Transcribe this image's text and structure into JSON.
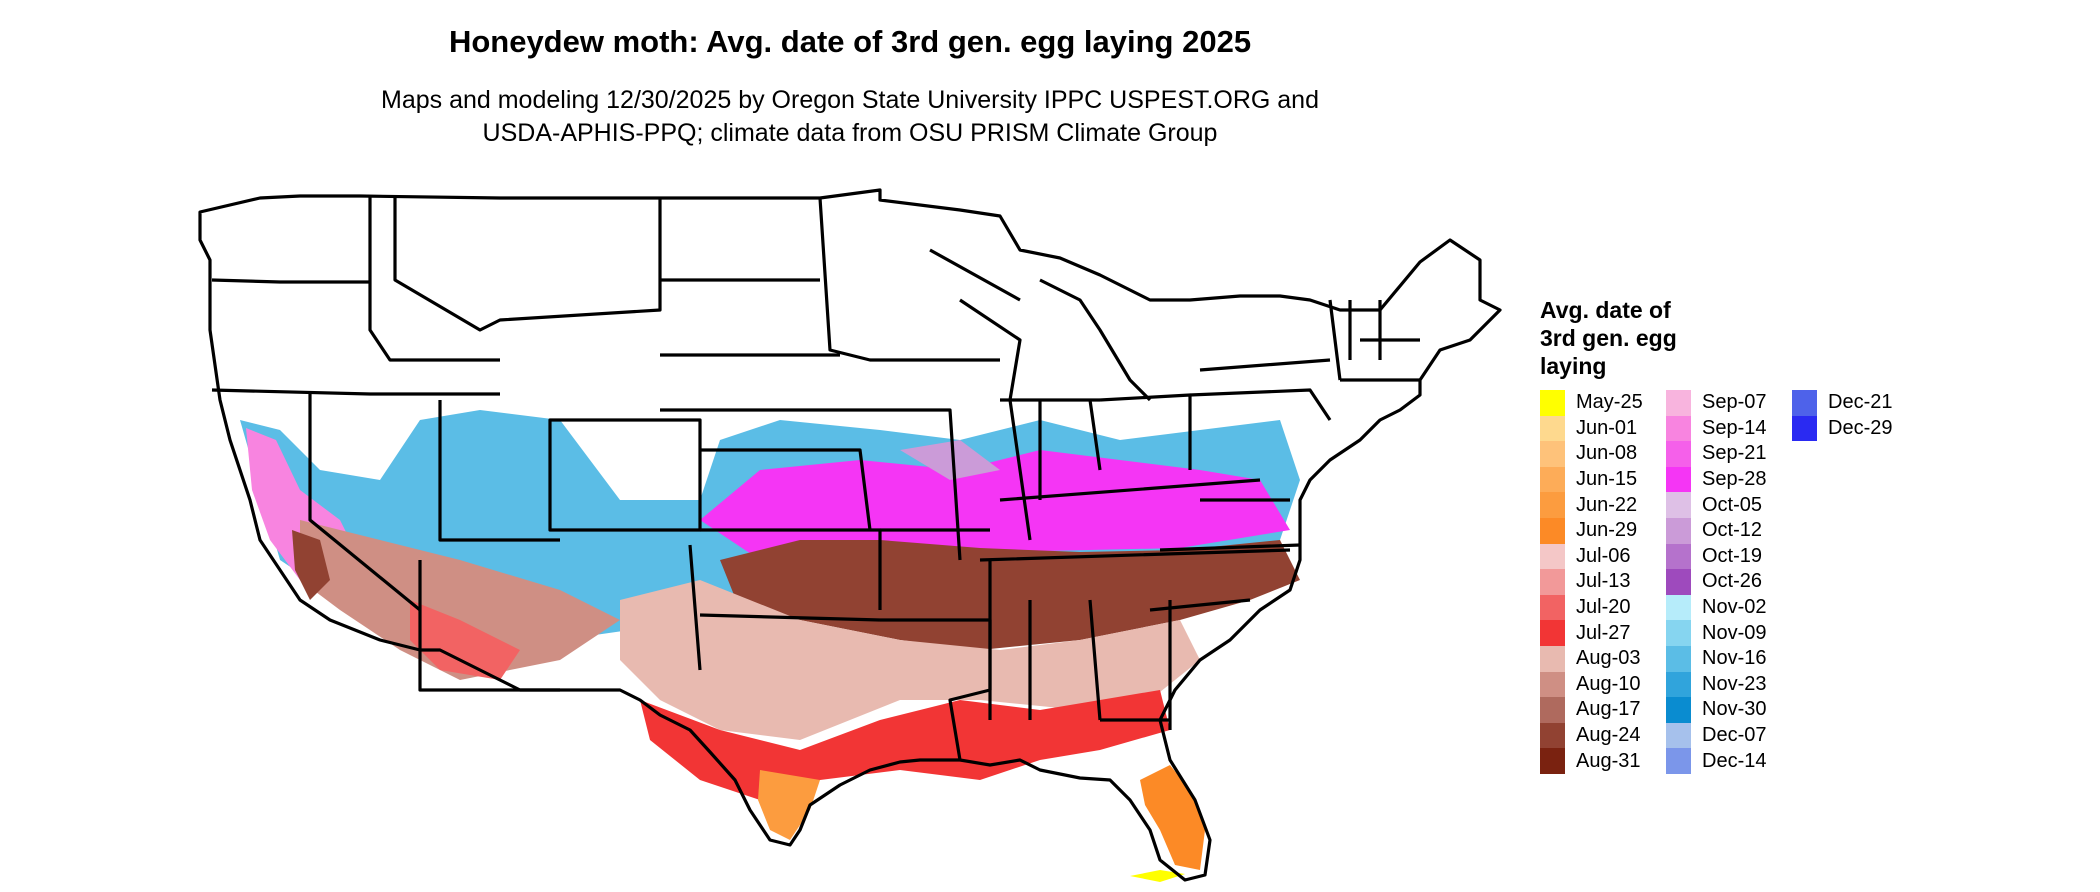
{
  "title": "Honeydew moth: Avg. date of 3rd gen. egg laying 2025",
  "subtitle_lines": [
    "Maps and modeling 12/30/2025 by Oregon State University IPPC USPEST.ORG and",
    "USDA-APHIS-PPQ; climate data from OSU PRISM Climate Group"
  ],
  "legend": {
    "title_lines": [
      "Avg. date of",
      "3rd gen. egg",
      "laying"
    ],
    "columns": [
      [
        {
          "label": "May-25",
          "color": "#FFFF00"
        },
        {
          "label": "Jun-01",
          "color": "#FED98E"
        },
        {
          "label": "Jun-08",
          "color": "#FEC27A"
        },
        {
          "label": "Jun-15",
          "color": "#FDAC58"
        },
        {
          "label": "Jun-22",
          "color": "#FC9C3F"
        },
        {
          "label": "Jun-29",
          "color": "#FC8A26"
        },
        {
          "label": "Jul-06",
          "color": "#F4C7C7"
        },
        {
          "label": "Jul-13",
          "color": "#F29999"
        },
        {
          "label": "Jul-20",
          "color": "#F26363"
        },
        {
          "label": "Jul-27",
          "color": "#F23535"
        },
        {
          "label": "Aug-03",
          "color": "#E8BAB0"
        },
        {
          "label": "Aug-10",
          "color": "#CF8F84"
        },
        {
          "label": "Aug-17",
          "color": "#AF6A5E"
        },
        {
          "label": "Aug-24",
          "color": "#914232"
        },
        {
          "label": "Aug-31",
          "color": "#7A2210"
        }
      ],
      [
        {
          "label": "Sep-07",
          "color": "#F8B4DE"
        },
        {
          "label": "Sep-14",
          "color": "#F884E0"
        },
        {
          "label": "Sep-21",
          "color": "#F560EA"
        },
        {
          "label": "Sep-28",
          "color": "#F535F5"
        },
        {
          "label": "Oct-05",
          "color": "#DEC0E6"
        },
        {
          "label": "Oct-12",
          "color": "#CB9BD8"
        },
        {
          "label": "Oct-19",
          "color": "#B572CC"
        },
        {
          "label": "Oct-26",
          "color": "#9E4ABD"
        },
        {
          "label": "Nov-02",
          "color": "#B6ECFA"
        },
        {
          "label": "Nov-09",
          "color": "#86D5F0"
        },
        {
          "label": "Nov-16",
          "color": "#5BBDE6"
        },
        {
          "label": "Nov-23",
          "color": "#30A4DC"
        },
        {
          "label": "Nov-30",
          "color": "#0A8CD0"
        },
        {
          "label": "Dec-07",
          "color": "#A6C1EC"
        },
        {
          "label": "Dec-14",
          "color": "#7B96EA"
        }
      ],
      [
        {
          "label": "Dec-21",
          "color": "#4E62EA"
        },
        {
          "label": "Dec-29",
          "color": "#2A2AF2"
        }
      ]
    ]
  },
  "map_regions": [
    {
      "name": "west-coast-band",
      "color": "#F884E0"
    },
    {
      "name": "california-valley",
      "color": "#914232"
    },
    {
      "name": "southwest-desert",
      "color": "#CF8F84"
    },
    {
      "name": "arizona-low",
      "color": "#F26363"
    },
    {
      "name": "central-band",
      "color": "#F535F5"
    },
    {
      "name": "mid-atlantic-band",
      "color": "#CB9BD8"
    },
    {
      "name": "south-brown-band",
      "color": "#914232"
    },
    {
      "name": "south-pink-band",
      "color": "#E8BAB0"
    },
    {
      "name": "gulf-red-band",
      "color": "#F23535"
    },
    {
      "name": "south-texas",
      "color": "#FC9C3F"
    },
    {
      "name": "florida-peninsula",
      "color": "#FC8A26"
    },
    {
      "name": "florida-tip",
      "color": "#FFFF00"
    },
    {
      "name": "cool-fringe",
      "color": "#5BBDE6"
    }
  ]
}
